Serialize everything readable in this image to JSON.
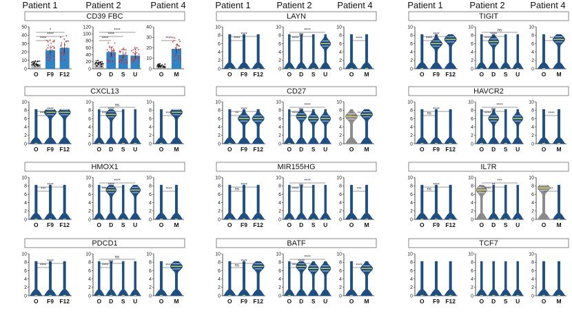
{
  "colors": {
    "violin": "#1d4f85",
    "violin_other": "#8a8a8a",
    "bar": "#2f84c5",
    "median": "#e3e34a",
    "dot_red": "#d62b2b",
    "frame": "#555555"
  },
  "chart_data": {
    "type": "violin",
    "column_groups": [
      {
        "headers": [
          "Patient 1",
          "Patient 2",
          "Patient 4"
        ]
      },
      {
        "headers": [
          "Patient 1",
          "Patient 2",
          "Patient 4"
        ]
      },
      {
        "headers": [
          "Patient 1",
          "Patient 2",
          "Patient 4"
        ]
      }
    ],
    "x_groups": [
      [
        "O",
        "F9",
        "F12"
      ],
      [
        "O",
        "D",
        "S",
        "U"
      ],
      [
        "O",
        "M"
      ]
    ],
    "genes": [
      {
        "title": "CD39 FBC",
        "ylims": [
          [
            0,
            50
          ],
          [
            0,
            120
          ],
          [
            0,
            40
          ]
        ],
        "yticks": [
          [
            0,
            10,
            20,
            30,
            40,
            50
          ],
          [
            0,
            20,
            40,
            60,
            80,
            100,
            120
          ],
          [
            0,
            10,
            20,
            30,
            40
          ]
        ],
        "panels": [
          {
            "type": "bar",
            "values": [
              6,
              22,
              25
            ],
            "sig": [
              "****",
              "****",
              "*"
            ]
          },
          {
            "type": "bar",
            "values": [
              15,
              48,
              40,
              38
            ],
            "sig": [
              "****",
              "****",
              "****"
            ]
          },
          {
            "type": "bar",
            "values": [
              3,
              19
            ],
            "sig": [
              "****"
            ]
          }
        ]
      },
      {
        "title": "LAYN",
        "ylims": [
          [
            0,
            10
          ],
          [
            0,
            10
          ],
          [
            0,
            10
          ]
        ],
        "yticks": [
          [
            0,
            2,
            4,
            6,
            8,
            10
          ],
          [
            0,
            2,
            4,
            6,
            8,
            10
          ],
          [
            0,
            2,
            4,
            6,
            8,
            10
          ]
        ],
        "panels": [
          {
            "type": "violin",
            "medians": [
              0,
              0,
              0
            ],
            "sig": [
              "****",
              "****"
            ]
          },
          {
            "type": "violin",
            "medians": [
              0,
              0,
              0,
              6
            ],
            "sig": [
              "****",
              "ns",
              "****"
            ]
          },
          {
            "type": "violin",
            "medians": [
              0,
              0
            ],
            "sig": [
              "****"
            ]
          }
        ]
      },
      {
        "title": "TIGIT",
        "ylims": [
          [
            0,
            10
          ],
          [
            0,
            10
          ],
          [
            0,
            10
          ]
        ],
        "yticks": [
          [
            0,
            2,
            4,
            6,
            8,
            10
          ],
          [
            0,
            2,
            4,
            6,
            8,
            10
          ],
          [
            0,
            2,
            4,
            6,
            8,
            10
          ]
        ],
        "panels": [
          {
            "type": "violin",
            "medians": [
              0,
              6,
              7
            ],
            "sig": [
              "****",
              "****"
            ]
          },
          {
            "type": "violin",
            "medians": [
              0,
              6.5,
              0,
              0
            ],
            "sig": [
              "****",
              "****",
              "ns"
            ]
          },
          {
            "type": "violin",
            "medians": [
              0,
              7
            ],
            "sig": [
              "**"
            ]
          }
        ]
      },
      {
        "title": "CXCL13",
        "ylims": [
          [
            0,
            10
          ],
          [
            0,
            10
          ],
          [
            0,
            10
          ]
        ],
        "yticks": [
          [
            0,
            2,
            4,
            6,
            8,
            10
          ],
          [
            0,
            2,
            4,
            6,
            8,
            10
          ],
          [
            0,
            2,
            4,
            6,
            8,
            10
          ]
        ],
        "panels": [
          {
            "type": "violin",
            "medians": [
              0,
              7.5,
              7.5
            ],
            "sig": [
              "****",
              "****"
            ]
          },
          {
            "type": "violin",
            "medians": [
              0,
              7,
              0,
              0
            ],
            "sig": [
              "****",
              "****",
              "ns"
            ]
          },
          {
            "type": "violin",
            "medians": [
              0,
              7.5
            ],
            "sig": [
              "****"
            ]
          }
        ]
      },
      {
        "title": "CD27",
        "ylims": [
          [
            0,
            10
          ],
          [
            0,
            10
          ],
          [
            0,
            10
          ]
        ],
        "yticks": [
          [
            0,
            2,
            4,
            6,
            8,
            10
          ],
          [
            0,
            2,
            4,
            6,
            8,
            10
          ],
          [
            0,
            2,
            4,
            6,
            8,
            10
          ]
        ],
        "panels": [
          {
            "type": "violin",
            "medians": [
              0,
              6,
              6
            ],
            "sig": [
              "**",
              "****"
            ]
          },
          {
            "type": "violin",
            "medians": [
              0,
              6.5,
              6,
              6
            ],
            "sig": [
              "****",
              "ns",
              "****"
            ]
          },
          {
            "type": "violin",
            "medians": [
              6.5,
              7
            ],
            "sig": [
              "**"
            ]
          }
        ]
      },
      {
        "title": "HAVCR2",
        "ylims": [
          [
            0,
            10
          ],
          [
            0,
            10
          ],
          [
            0,
            10
          ]
        ],
        "yticks": [
          [
            0,
            2,
            4,
            6,
            8,
            10
          ],
          [
            0,
            2,
            4,
            6,
            8,
            10
          ],
          [
            0,
            2,
            4,
            6,
            8,
            10
          ]
        ],
        "panels": [
          {
            "type": "violin",
            "medians": [
              0,
              0,
              0
            ],
            "sig": [
              "ns",
              "****"
            ]
          },
          {
            "type": "violin",
            "medians": [
              0,
              6,
              0,
              6
            ],
            "sig": [
              "****",
              "ns",
              "****"
            ]
          },
          {
            "type": "violin",
            "medians": [
              0,
              0
            ],
            "sig": [
              "****"
            ]
          }
        ]
      },
      {
        "title": "HMOX1",
        "ylims": [
          [
            0,
            10
          ],
          [
            0,
            10
          ],
          [
            0,
            10
          ]
        ],
        "yticks": [
          [
            0,
            2,
            4,
            6,
            8,
            10
          ],
          [
            0,
            2,
            4,
            6,
            8,
            10
          ],
          [
            0,
            2,
            4,
            6,
            8,
            10
          ]
        ],
        "panels": [
          {
            "type": "violin",
            "medians": [
              0,
              0,
              0
            ],
            "sig": [
              "***",
              "****"
            ]
          },
          {
            "type": "violin",
            "medians": [
              0,
              7,
              0,
              7
            ],
            "sig": [
              "****",
              "****",
              "****"
            ]
          },
          {
            "type": "violin",
            "medians": [
              0,
              0
            ],
            "sig": [
              "****"
            ]
          }
        ]
      },
      {
        "title": "MIR155HG",
        "ylims": [
          [
            0,
            10
          ],
          [
            0,
            10
          ],
          [
            0,
            10
          ]
        ],
        "yticks": [
          [
            0,
            2,
            4,
            6,
            8,
            10
          ],
          [
            0,
            2,
            4,
            6,
            8,
            10
          ],
          [
            0,
            2,
            4,
            6,
            8,
            10
          ]
        ],
        "panels": [
          {
            "type": "violin",
            "medians": [
              0,
              0,
              0
            ],
            "sig": [
              "ns",
              "****"
            ]
          },
          {
            "type": "violin",
            "medians": [
              0,
              0,
              0,
              0
            ],
            "sig": [
              "****",
              "ns",
              "****"
            ]
          },
          {
            "type": "violin",
            "medians": [
              0,
              0
            ],
            "sig": [
              "***"
            ]
          }
        ]
      },
      {
        "title": "IL7R",
        "ylims": [
          [
            0,
            10
          ],
          [
            0,
            10
          ],
          [
            0,
            10
          ]
        ],
        "yticks": [
          [
            0,
            2,
            4,
            6,
            8,
            10
          ],
          [
            0,
            2,
            4,
            6,
            8,
            10
          ],
          [
            0,
            2,
            4,
            6,
            8,
            10
          ]
        ],
        "panels": [
          {
            "type": "violin",
            "medians": [
              0,
              0,
              0
            ],
            "sig": [
              "ns",
              "****"
            ]
          },
          {
            "type": "violin",
            "medians": [
              7,
              0,
              0,
              0
            ],
            "sig": [
              "****",
              "**",
              "***"
            ]
          },
          {
            "type": "violin",
            "medians": [
              7.5,
              0
            ],
            "sig": [
              "**"
            ]
          }
        ]
      },
      {
        "title": "PDCD1",
        "ylims": [
          [
            0,
            10
          ],
          [
            0,
            10
          ],
          [
            0,
            10
          ]
        ],
        "yticks": [
          [
            0,
            2,
            4,
            6,
            8,
            10
          ],
          [
            0,
            2,
            4,
            6,
            8,
            10
          ],
          [
            0,
            2,
            4,
            6,
            8,
            10
          ]
        ],
        "panels": [
          {
            "type": "violin",
            "medians": [
              0,
              0,
              0
            ],
            "sig": [
              "****",
              "****"
            ]
          },
          {
            "type": "violin",
            "medians": [
              0,
              0,
              0,
              0
            ],
            "sig": [
              "****",
              "ns",
              "ns"
            ]
          },
          {
            "type": "violin",
            "medians": [
              0,
              7
            ],
            "sig": [
              "****"
            ]
          }
        ]
      },
      {
        "title": "BATF",
        "ylims": [
          [
            0,
            10
          ],
          [
            0,
            10
          ],
          [
            0,
            10
          ]
        ],
        "yticks": [
          [
            0,
            2,
            4,
            6,
            8,
            10
          ],
          [
            0,
            2,
            4,
            6,
            8,
            10
          ],
          [
            0,
            2,
            4,
            6,
            8,
            10
          ]
        ],
        "panels": [
          {
            "type": "violin",
            "medians": [
              0,
              0,
              7
            ],
            "sig": [
              "ns",
              "****"
            ]
          },
          {
            "type": "violin",
            "medians": [
              0,
              7,
              6.5,
              6.5
            ],
            "sig": [
              "****",
              "****",
              "****"
            ]
          },
          {
            "type": "violin",
            "medians": [
              0,
              6.5
            ],
            "sig": [
              "****"
            ]
          }
        ]
      },
      {
        "title": "TCF7",
        "ylims": [
          [
            0,
            10
          ],
          [
            0,
            10
          ],
          [
            0,
            10
          ]
        ],
        "yticks": [
          [
            0,
            2,
            4,
            6,
            8,
            10
          ],
          [
            0,
            2,
            4,
            6,
            8,
            10
          ],
          [
            0,
            2,
            4,
            6,
            8,
            10
          ]
        ],
        "panels": [
          {
            "type": "violin",
            "medians": [
              0,
              0,
              0
            ],
            "sig": []
          },
          {
            "type": "violin",
            "medians": [
              0,
              0,
              0,
              0
            ],
            "sig": []
          },
          {
            "type": "violin",
            "medians": [
              0,
              0
            ],
            "sig": []
          }
        ]
      }
    ]
  }
}
